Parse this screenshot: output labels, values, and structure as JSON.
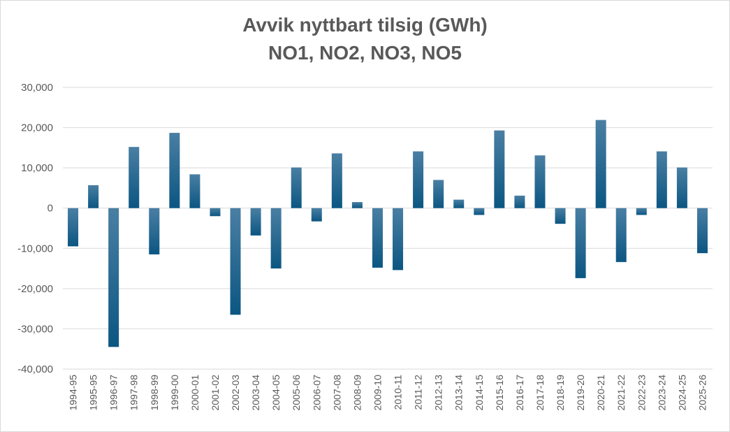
{
  "chart_data": {
    "type": "bar",
    "title": "Avvik nyttbart tilsig (GWh)",
    "subtitle": "NO1, NO2, NO3, NO5",
    "xlabel": "",
    "ylabel": "",
    "ylim": [
      -40000,
      30000
    ],
    "yticks": [
      30000,
      20000,
      10000,
      0,
      -10000,
      -20000,
      -30000,
      -40000
    ],
    "ytick_labels": [
      "30,000",
      "20,000",
      "10,000",
      "0",
      "-10,000",
      "-20,000",
      "-30,000",
      "-40,000"
    ],
    "grid": true,
    "legend": "none",
    "bar_color": "#1f5f85",
    "categories": [
      "1994-95",
      "1995-95",
      "1996-97",
      "1997-98",
      "1998-99",
      "1999-00",
      "2000-01",
      "2001-02",
      "2002-03",
      "2003-04",
      "2004-05",
      "2005-06",
      "2006-07",
      "2007-08",
      "2008-09",
      "2009-10",
      "2010-11",
      "2011-12",
      "2012-13",
      "2013-14",
      "2014-15",
      "2015-16",
      "2016-17",
      "2017-18",
      "2018-19",
      "2019-20",
      "2020-21",
      "2021-22",
      "2022-23",
      "2023-24",
      "2024-25",
      "2025-26"
    ],
    "values": [
      -9500,
      5700,
      -34500,
      15200,
      -11500,
      18700,
      8400,
      -2000,
      -26500,
      -6800,
      -15000,
      10100,
      -3300,
      13600,
      1500,
      -14800,
      -15400,
      14100,
      7000,
      2100,
      -1700,
      19300,
      3100,
      13100,
      -3900,
      -17400,
      21900,
      -13400,
      -1700,
      14100,
      10100,
      -11200
    ]
  }
}
